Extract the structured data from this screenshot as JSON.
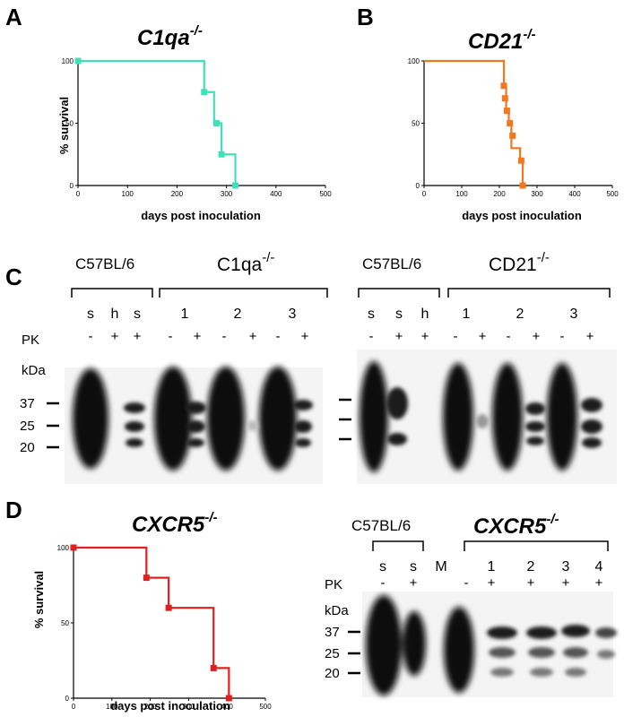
{
  "panels": {
    "A": {
      "label": "A",
      "title": "C1qa",
      "title_sup": "-/-",
      "ylabel": "% survival",
      "xlabel": "days post inoculation",
      "color": "#40e0b8"
    },
    "B": {
      "label": "B",
      "title": "CD21",
      "title_sup": "-/-",
      "color": "#f07820"
    },
    "C": {
      "label": "C",
      "left": {
        "group1": "C57BL/6",
        "group2": "C1qa",
        "group2_sup": "-/-",
        "lanes": [
          "s",
          "h",
          "s",
          "1",
          "2",
          "3"
        ],
        "pk": [
          "-",
          "+",
          "+",
          "-",
          "+",
          "-",
          "+",
          "-",
          "+"
        ]
      },
      "right": {
        "group1": "C57BL/6",
        "group2": "CD21",
        "group2_sup": "-/-",
        "lanes": [
          "s",
          "s",
          "h",
          "1",
          "2",
          "3"
        ],
        "pk": [
          "-",
          "+",
          "+",
          "-",
          "+",
          "-",
          "+",
          "-",
          "+"
        ]
      },
      "pk_label": "PK",
      "kda_label": "kDa",
      "markers": [
        "37",
        "25",
        "20"
      ]
    },
    "D": {
      "label": "D",
      "title": "CXCR5",
      "title_sup": "-/-",
      "color": "#e02020",
      "blot": {
        "group1": "C57BL/6",
        "group2": "CXCR5",
        "group2_sup": "-/-",
        "lanes": [
          "s",
          "s",
          "M",
          "1",
          "2",
          "3",
          "4"
        ],
        "pk": [
          "-",
          "+",
          "-",
          "+",
          "+",
          "+",
          "+"
        ],
        "pk_label": "PK",
        "kda_label": "kDa",
        "markers": [
          "37",
          "25",
          "20"
        ]
      }
    }
  },
  "chart_data": [
    {
      "type": "line",
      "title": "C1qa-/-",
      "xlabel": "days post inoculation",
      "ylabel": "% survival",
      "xlim": [
        0,
        500
      ],
      "ylim": [
        0,
        100
      ],
      "xticks": [
        "0",
        "100",
        "200",
        "300",
        "400",
        "500"
      ],
      "yticks": [
        "0",
        "50",
        "100"
      ],
      "series": [
        {
          "x": [
            0,
            255,
            255,
            275,
            275,
            290,
            290,
            318,
            318
          ],
          "y": [
            100,
            100,
            75,
            75,
            50,
            50,
            25,
            25,
            0
          ],
          "markers_x": [
            0,
            255,
            280,
            290,
            318
          ],
          "markers_y": [
            100,
            75,
            50,
            25,
            0
          ]
        }
      ]
    },
    {
      "type": "line",
      "title": "CD21-/-",
      "xlabel": "days post inoculation",
      "ylabel": "",
      "xlim": [
        0,
        500
      ],
      "ylim": [
        0,
        100
      ],
      "xticks": [
        "0",
        "100",
        "200",
        "300",
        "400",
        "500"
      ],
      "yticks": [
        "0",
        "50",
        "100"
      ],
      "series": [
        {
          "x": [
            0,
            212,
            212,
            218,
            218,
            225,
            225,
            232,
            232,
            255,
            255,
            262,
            262
          ],
          "y": [
            100,
            100,
            80,
            80,
            60,
            60,
            50,
            50,
            30,
            30,
            20,
            20,
            0
          ],
          "markers_x": [
            212,
            215,
            220,
            228,
            235,
            258,
            262
          ],
          "markers_y": [
            80,
            70,
            60,
            50,
            40,
            20,
            0
          ]
        }
      ]
    },
    {
      "type": "line",
      "title": "CXCR5-/-",
      "xlabel": "days post inoculation",
      "ylabel": "% survival",
      "xlim": [
        0,
        500
      ],
      "ylim": [
        0,
        100
      ],
      "xticks": [
        "0",
        "100",
        "200",
        "300",
        "400",
        "500"
      ],
      "yticks": [
        "0",
        "50",
        "100"
      ],
      "series": [
        {
          "x": [
            0,
            190,
            190,
            248,
            248,
            365,
            365,
            405,
            405
          ],
          "y": [
            100,
            100,
            80,
            80,
            60,
            60,
            20,
            20,
            0
          ],
          "markers_x": [
            0,
            190,
            248,
            365,
            405
          ],
          "markers_y": [
            100,
            80,
            60,
            20,
            0
          ]
        }
      ]
    }
  ]
}
